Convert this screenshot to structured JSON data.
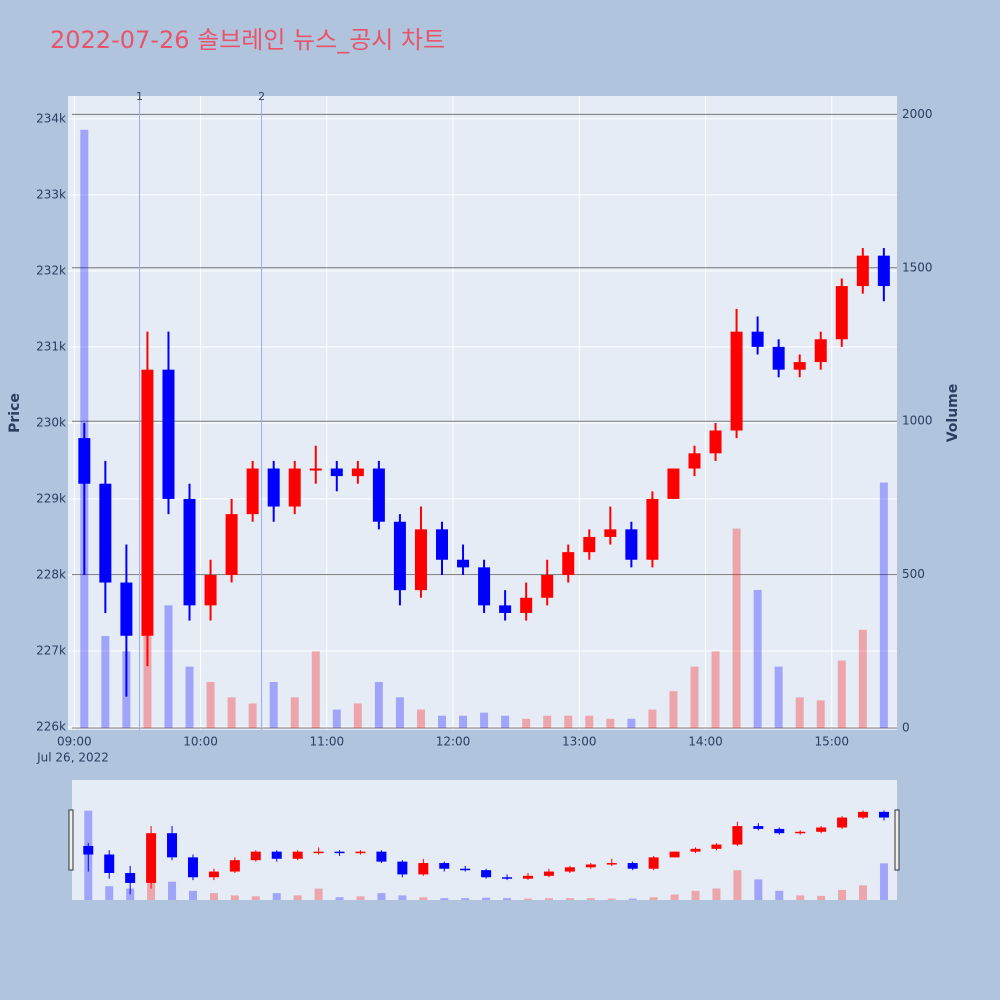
{
  "chart_data": {
    "type": "candlestick",
    "title": "2022-07-26 솔브레인 뉴스_공시 차트",
    "y_label": "Price",
    "y2_label": "Volume",
    "date_label": "Jul 26, 2022",
    "increasing_color": "#ff0000",
    "decreasing_color": "#0000ff",
    "x": [
      "09:00",
      "09:10",
      "09:20",
      "09:30",
      "09:40",
      "09:50",
      "10:00",
      "10:10",
      "10:20",
      "10:30",
      "10:40",
      "10:50",
      "11:00",
      "11:10",
      "11:20",
      "11:30",
      "11:40",
      "11:50",
      "12:00",
      "12:10",
      "12:20",
      "12:30",
      "12:40",
      "12:50",
      "13:00",
      "13:10",
      "13:20",
      "13:30",
      "13:40",
      "13:50",
      "14:00",
      "14:10",
      "14:20",
      "14:30",
      "14:40",
      "14:50",
      "15:00",
      "15:10",
      "15:20"
    ],
    "open": [
      229800,
      229200,
      227900,
      227200,
      230700,
      229000,
      227600,
      228000,
      228800,
      229400,
      228900,
      229400,
      229400,
      229300,
      229400,
      228700,
      227800,
      228600,
      228200,
      228100,
      227600,
      227500,
      227700,
      228000,
      228300,
      228500,
      228600,
      228200,
      229000,
      229400,
      229600,
      229900,
      231200,
      231000,
      230700,
      230800,
      231100,
      231800,
      232200
    ],
    "high": [
      230000,
      229500,
      228400,
      231200,
      231200,
      229200,
      228200,
      229000,
      229500,
      229500,
      229500,
      229700,
      229500,
      229500,
      229500,
      228800,
      228900,
      228700,
      228400,
      228200,
      227800,
      227900,
      228200,
      228400,
      228600,
      228900,
      228700,
      229100,
      229400,
      229700,
      230000,
      231500,
      231400,
      231100,
      230900,
      231200,
      231900,
      232300,
      232300
    ],
    "low": [
      228000,
      227500,
      226400,
      226800,
      228800,
      227400,
      227400,
      227900,
      228700,
      228700,
      228800,
      229200,
      229100,
      229200,
      228600,
      227600,
      227700,
      228000,
      228000,
      227500,
      227400,
      227400,
      227600,
      227900,
      228200,
      228400,
      228100,
      228100,
      229000,
      229300,
      229500,
      229800,
      230900,
      230600,
      230600,
      230700,
      231000,
      231700,
      231600
    ],
    "close": [
      229200,
      227900,
      227200,
      230700,
      229000,
      227600,
      228000,
      228800,
      229400,
      228900,
      229400,
      229400,
      229300,
      229400,
      228700,
      227800,
      228600,
      228200,
      228100,
      227600,
      227500,
      227700,
      228000,
      228300,
      228500,
      228600,
      228200,
      229000,
      229400,
      229600,
      229900,
      231200,
      231000,
      230700,
      230800,
      231100,
      231800,
      232200,
      231800
    ],
    "volume": [
      1950,
      300,
      250,
      900,
      400,
      200,
      150,
      100,
      80,
      150,
      100,
      250,
      60,
      80,
      150,
      100,
      60,
      40,
      40,
      50,
      40,
      30,
      40,
      40,
      40,
      30,
      30,
      60,
      120,
      200,
      250,
      650,
      450,
      200,
      100,
      90,
      220,
      320,
      800
    ],
    "xlim": [
      "08:57",
      "15:31"
    ],
    "xticks": [
      "09:00",
      "10:00",
      "11:00",
      "12:00",
      "13:00",
      "14:00",
      "15:00"
    ],
    "ylim": [
      226000,
      234300
    ],
    "yticks": [
      {
        "value": 226000,
        "label": "226k"
      },
      {
        "value": 227000,
        "label": "227k"
      },
      {
        "value": 228000,
        "label": "228k"
      },
      {
        "value": 229000,
        "label": "229k"
      },
      {
        "value": 230000,
        "label": "230k"
      },
      {
        "value": 231000,
        "label": "231k"
      },
      {
        "value": 232000,
        "label": "232k"
      },
      {
        "value": 233000,
        "label": "233k"
      },
      {
        "value": 234000,
        "label": "234k"
      }
    ],
    "y2lim": [
      0,
      2060
    ],
    "y2ticks": [
      0,
      500,
      1000,
      1500,
      2000
    ],
    "annotations": [
      {
        "x": "09:31",
        "label": "1"
      },
      {
        "x": "10:29",
        "label": "2"
      }
    ]
  }
}
